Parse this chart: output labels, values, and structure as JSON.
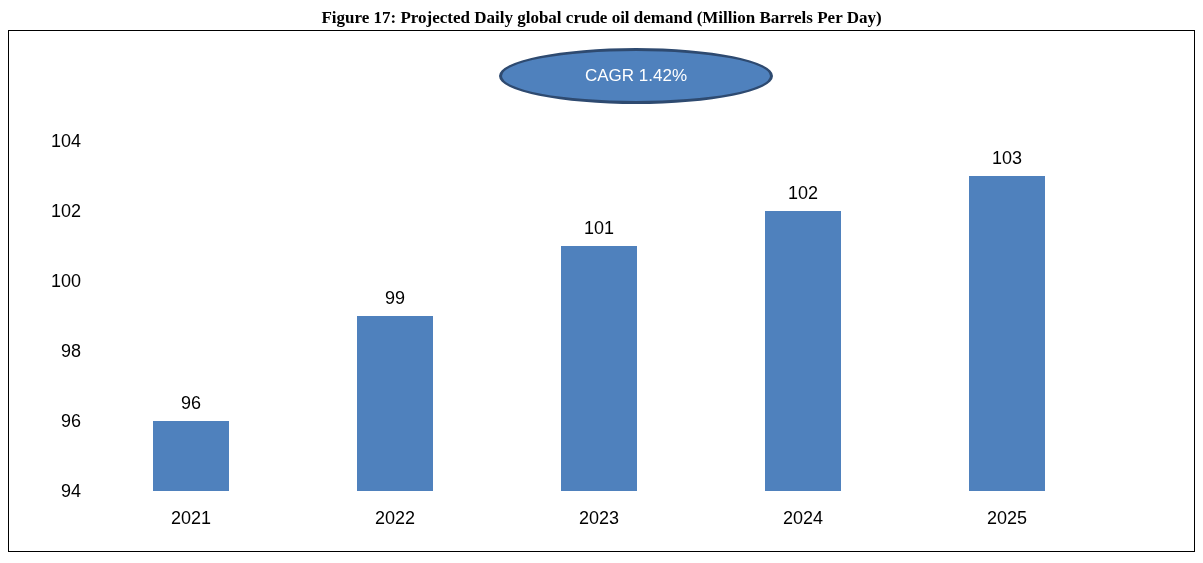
{
  "chart_data": {
    "type": "bar",
    "title": "Figure 17: Projected Daily global crude oil demand (Million Barrels Per Day)",
    "categories": [
      "2021",
      "2022",
      "2023",
      "2024",
      "2025"
    ],
    "values": [
      96,
      99,
      101,
      102,
      103
    ],
    "color": "#4f81bd",
    "ylim": [
      94,
      104
    ],
    "yticks": [
      94,
      96,
      98,
      100,
      102,
      104
    ],
    "data_labels": true,
    "annotations": [
      "CAGR 1.42%"
    ]
  }
}
